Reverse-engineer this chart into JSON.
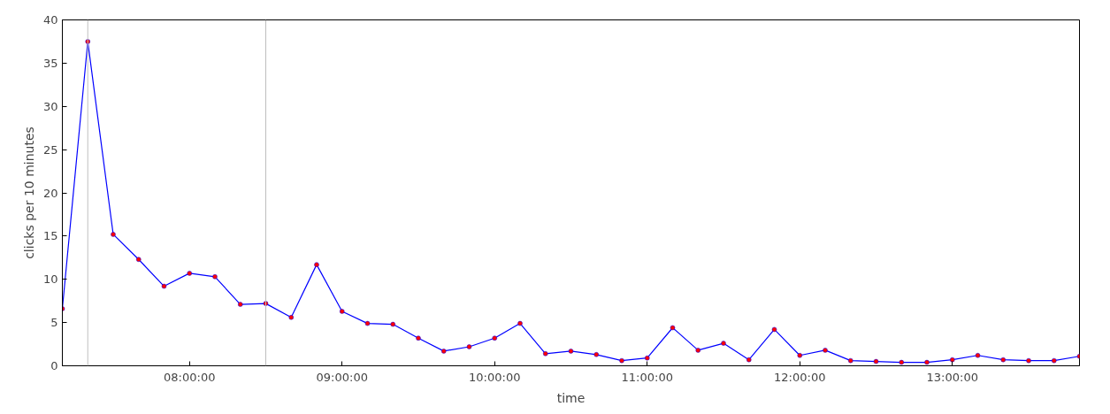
{
  "chart_data": {
    "type": "line",
    "xlabel": "time",
    "ylabel": "clicks per 10 minutes",
    "x": [
      7.1667,
      7.3333,
      7.5,
      7.6667,
      7.8333,
      8.0,
      8.1667,
      8.3333,
      8.5,
      8.6667,
      8.8333,
      9.0,
      9.1667,
      9.3333,
      9.5,
      9.6667,
      9.8333,
      10.0,
      10.1667,
      10.3333,
      10.5,
      10.6667,
      10.8333,
      11.0,
      11.1667,
      11.3333,
      11.5,
      11.6667,
      11.8333,
      12.0,
      12.1667,
      12.3333,
      12.5,
      12.6667,
      12.8333,
      13.0,
      13.1667,
      13.3333,
      13.5,
      13.6667,
      13.8333
    ],
    "series": [
      {
        "color": "#0000ff",
        "colors": [
          "#ff0000",
          "#ff0000",
          "#ff0000",
          "#ff0000",
          "#ff0000",
          "#ff0000",
          "#ff0000",
          "#ff0000",
          "#ff0000",
          "#ff0000",
          "#ff0000",
          "#ff0000",
          "#ff0000",
          "#ff0000",
          "#ff0000",
          "#ff0000",
          "#ff0000",
          "#ff0000",
          "#ff0000",
          "#ff0000",
          "#ff0000",
          "#ff0000",
          "#ff0000",
          "#ff0000",
          "#ff0000",
          "#ff0000",
          "#ff0000",
          "#ff0000",
          "#ff0000",
          "#ff0000",
          "#ff0000",
          "#ff0000",
          "#ff0000",
          "#ff0000",
          "#ff0000",
          "#ff0000",
          "#ff0000",
          "#ff0000",
          "#ff0000",
          "#ff0000",
          "#ff0000"
        ],
        "values": [
          6.6,
          37.5,
          15.2,
          12.3,
          9.2,
          10.7,
          10.3,
          7.1,
          7.2,
          5.6,
          11.7,
          6.3,
          4.9,
          4.8,
          3.2,
          1.7,
          2.2,
          3.2,
          4.9,
          1.4,
          1.7,
          1.3,
          0.6,
          0.9,
          4.4,
          1.8,
          2.6,
          0.7,
          4.2,
          1.2,
          1.8,
          0.6,
          0.5,
          0.4,
          0.4,
          0.7,
          1.2,
          0.7,
          0.6,
          0.6,
          1.1
        ]
      }
    ],
    "xlim": [
      7.1667,
      13.8333
    ],
    "xticks": [
      {
        "value": 8,
        "label": "08:00:00"
      },
      {
        "value": 9,
        "label": "09:00:00"
      },
      {
        "value": 10,
        "label": "10:00:00"
      },
      {
        "value": 11,
        "label": "11:00:00"
      },
      {
        "value": 12,
        "label": "12:00:00"
      },
      {
        "value": 13,
        "label": "13:00:00"
      }
    ],
    "ylim": [
      0,
      40
    ],
    "yticks": [
      0,
      5,
      10,
      15,
      20,
      25,
      30,
      35,
      40
    ],
    "ref_lines": [
      {
        "axis": "x",
        "value": 7.3333,
        "label": null,
        "color": "#bfbfbf"
      },
      {
        "axis": "x",
        "value": 8.5,
        "label": null,
        "color": "#bfbfbf"
      }
    ],
    "marker": "circle",
    "grid": false
  }
}
